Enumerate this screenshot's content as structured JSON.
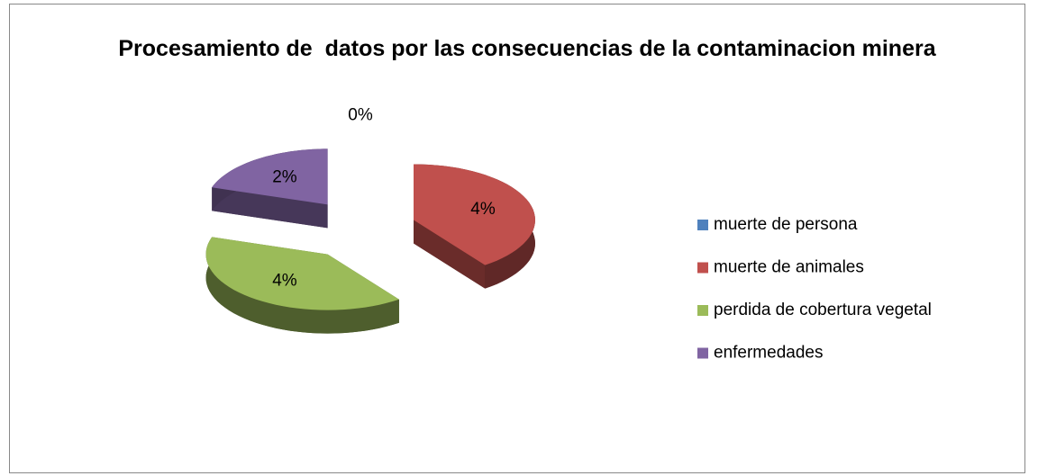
{
  "chart_data": {
    "type": "pie3d",
    "title": "Procesamiento de  datos por las consecuencias de la contaminacion minera",
    "categories": [
      "muerte de persona",
      "muerte de animales",
      "perdida de cobertura vegetal",
      "enfermedades"
    ],
    "values": [
      0,
      4,
      4,
      2
    ],
    "value_labels": [
      "0%",
      "4%",
      "4%",
      "2%"
    ],
    "colors": [
      "#4f81bd",
      "#c0504d",
      "#9bbb59",
      "#8064a2"
    ],
    "legend": "right"
  }
}
